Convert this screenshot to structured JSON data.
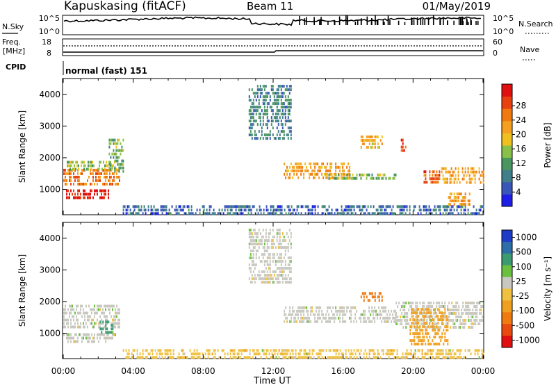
{
  "header": {
    "station": "Kapuskasing (fitACF)",
    "beam": "Beam 11",
    "date": "01/May/2019"
  },
  "noise_panel": {
    "left_label": "N.Sky",
    "left_ticks": [
      "10^5",
      "10^0"
    ],
    "right_label": "N.Search",
    "right_ticks": [
      "10^5",
      "10^0"
    ]
  },
  "freq_panel": {
    "left_label_1": "Freq.",
    "left_label_2": "[MHz]",
    "left_ticks": [
      "18",
      "8"
    ],
    "right_label": "Nave",
    "right_ticks": [
      "60",
      "0"
    ]
  },
  "cpid_panel": {
    "label": "CPID",
    "text": "normal (fast) 151"
  },
  "x_axis": {
    "label": "Time UT",
    "ticks": [
      "00:00",
      "04:00",
      "08:00",
      "12:00",
      "16:00",
      "20:00",
      "00:00"
    ]
  },
  "chart_data": [
    {
      "type": "heatmap",
      "quantity": "Power",
      "ylabel": "Slant Range [km]",
      "yticks": [
        "1000",
        "2000",
        "3000",
        "4000"
      ],
      "ylim": [
        200,
        4500
      ],
      "xlim_hours": [
        0,
        24
      ],
      "colorbar": {
        "label": "Power [dB]",
        "ticks": [
          "4",
          "8",
          "12",
          "16",
          "20",
          "24",
          "28"
        ],
        "colors": [
          "#1e1ee6",
          "#3a56b8",
          "#3f7f8a",
          "#4a9660",
          "#88c04a",
          "#f0c020",
          "#f5a020",
          "#f07a10",
          "#e84010",
          "#e01010"
        ]
      },
      "echo_regions": [
        {
          "t0": 0.0,
          "t1": 2.6,
          "r0": 700,
          "r1": 1000,
          "value": 28
        },
        {
          "t0": 0.0,
          "t1": 3.2,
          "r0": 1150,
          "r1": 1650,
          "value": 22
        },
        {
          "t0": 0.2,
          "t1": 3.0,
          "r0": 1650,
          "r1": 1900,
          "value": 14
        },
        {
          "t0": 2.6,
          "t1": 3.4,
          "r0": 1600,
          "r1": 2600,
          "value": 12
        },
        {
          "t0": 3.4,
          "t1": 24.0,
          "r0": 250,
          "r1": 500,
          "value": 6
        },
        {
          "t0": 10.6,
          "t1": 13.0,
          "r0": 2600,
          "r1": 4300,
          "value": 8
        },
        {
          "t0": 12.6,
          "t1": 16.4,
          "r0": 1350,
          "r1": 1850,
          "value": 20
        },
        {
          "t0": 15.0,
          "t1": 19.0,
          "r0": 1300,
          "r1": 1500,
          "value": 12
        },
        {
          "t0": 17.0,
          "t1": 18.2,
          "r0": 2300,
          "r1": 2700,
          "value": 18
        },
        {
          "t0": 19.3,
          "t1": 19.6,
          "r0": 2200,
          "r1": 2600,
          "value": 26
        },
        {
          "t0": 20.6,
          "t1": 21.6,
          "r0": 1200,
          "r1": 1600,
          "value": 24
        },
        {
          "t0": 21.6,
          "t1": 24.0,
          "r0": 1200,
          "r1": 1700,
          "value": 20
        },
        {
          "t0": 22.0,
          "t1": 23.2,
          "r0": 500,
          "r1": 900,
          "value": 20
        }
      ]
    },
    {
      "type": "heatmap",
      "quantity": "Velocity",
      "ylabel": "Slant Range [km]",
      "yticks": [
        "1000",
        "2000",
        "3000",
        "4000"
      ],
      "ylim": [
        200,
        4500
      ],
      "xlim_hours": [
        0,
        24
      ],
      "colorbar": {
        "label": "Velocity [m s⁻¹]",
        "ticks": [
          "1000",
          "500",
          "100",
          "25",
          "-25",
          "-100",
          "-500",
          "-1000"
        ],
        "colors": [
          "#1e3cc8",
          "#2e6ea8",
          "#3c9a70",
          "#6cc040",
          "#c8c8c0",
          "#f0c040",
          "#f0a020",
          "#ee7a10",
          "#e84a10",
          "#e01010"
        ]
      },
      "echo_regions": [
        {
          "t0": 0.0,
          "t1": 3.0,
          "r0": 700,
          "r1": 1000,
          "value": 0
        },
        {
          "t0": 0.0,
          "t1": 3.2,
          "r0": 1150,
          "r1": 1900,
          "value": 0
        },
        {
          "t0": 2.0,
          "t1": 2.8,
          "r0": 1000,
          "r1": 1400,
          "value": 100
        },
        {
          "t0": 3.4,
          "t1": 24.0,
          "r0": 250,
          "r1": 500,
          "value": -60
        },
        {
          "t0": 10.6,
          "t1": 13.0,
          "r0": 2600,
          "r1": 4300,
          "value": 0
        },
        {
          "t0": 12.6,
          "t1": 19.0,
          "r0": 1350,
          "r1": 1850,
          "value": 0
        },
        {
          "t0": 17.0,
          "t1": 18.2,
          "r0": 2000,
          "r1": 2300,
          "value": -700
        },
        {
          "t0": 19.0,
          "t1": 24.0,
          "r0": 1200,
          "r1": 2000,
          "value": 0
        },
        {
          "t0": 19.8,
          "t1": 22.0,
          "r0": 600,
          "r1": 1800,
          "value": -300
        }
      ]
    }
  ]
}
